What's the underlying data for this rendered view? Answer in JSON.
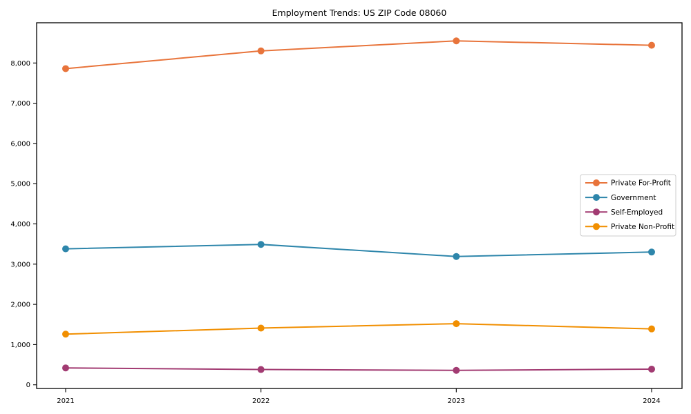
{
  "chart_data": {
    "type": "line",
    "title": "Employment Trends: US ZIP Code 08060",
    "xlabel": "",
    "ylabel": "",
    "x": [
      2021,
      2022,
      2023,
      2024
    ],
    "series": [
      {
        "name": "Private For-Profit",
        "color": "#E8743B",
        "values": [
          7860,
          8300,
          8550,
          8440
        ]
      },
      {
        "name": "Government",
        "color": "#2E86AB",
        "values": [
          3380,
          3490,
          3190,
          3300
        ]
      },
      {
        "name": "Self-Employed",
        "color": "#A23B72",
        "values": [
          420,
          380,
          360,
          390
        ]
      },
      {
        "name": "Private Non-Profit",
        "color": "#F18F01",
        "values": [
          1260,
          1410,
          1520,
          1390
        ]
      }
    ],
    "ylim": [
      0,
      9000
    ],
    "yticks": [
      0,
      1000,
      2000,
      3000,
      4000,
      5000,
      6000,
      7000,
      8000
    ],
    "ytick_format": "comma",
    "grid": false,
    "frame": true,
    "marker": "circle",
    "legend_position": "center-right",
    "axis_color": "#000000",
    "background_color": "#ffffff",
    "legend_border_color": "#cccccc"
  }
}
